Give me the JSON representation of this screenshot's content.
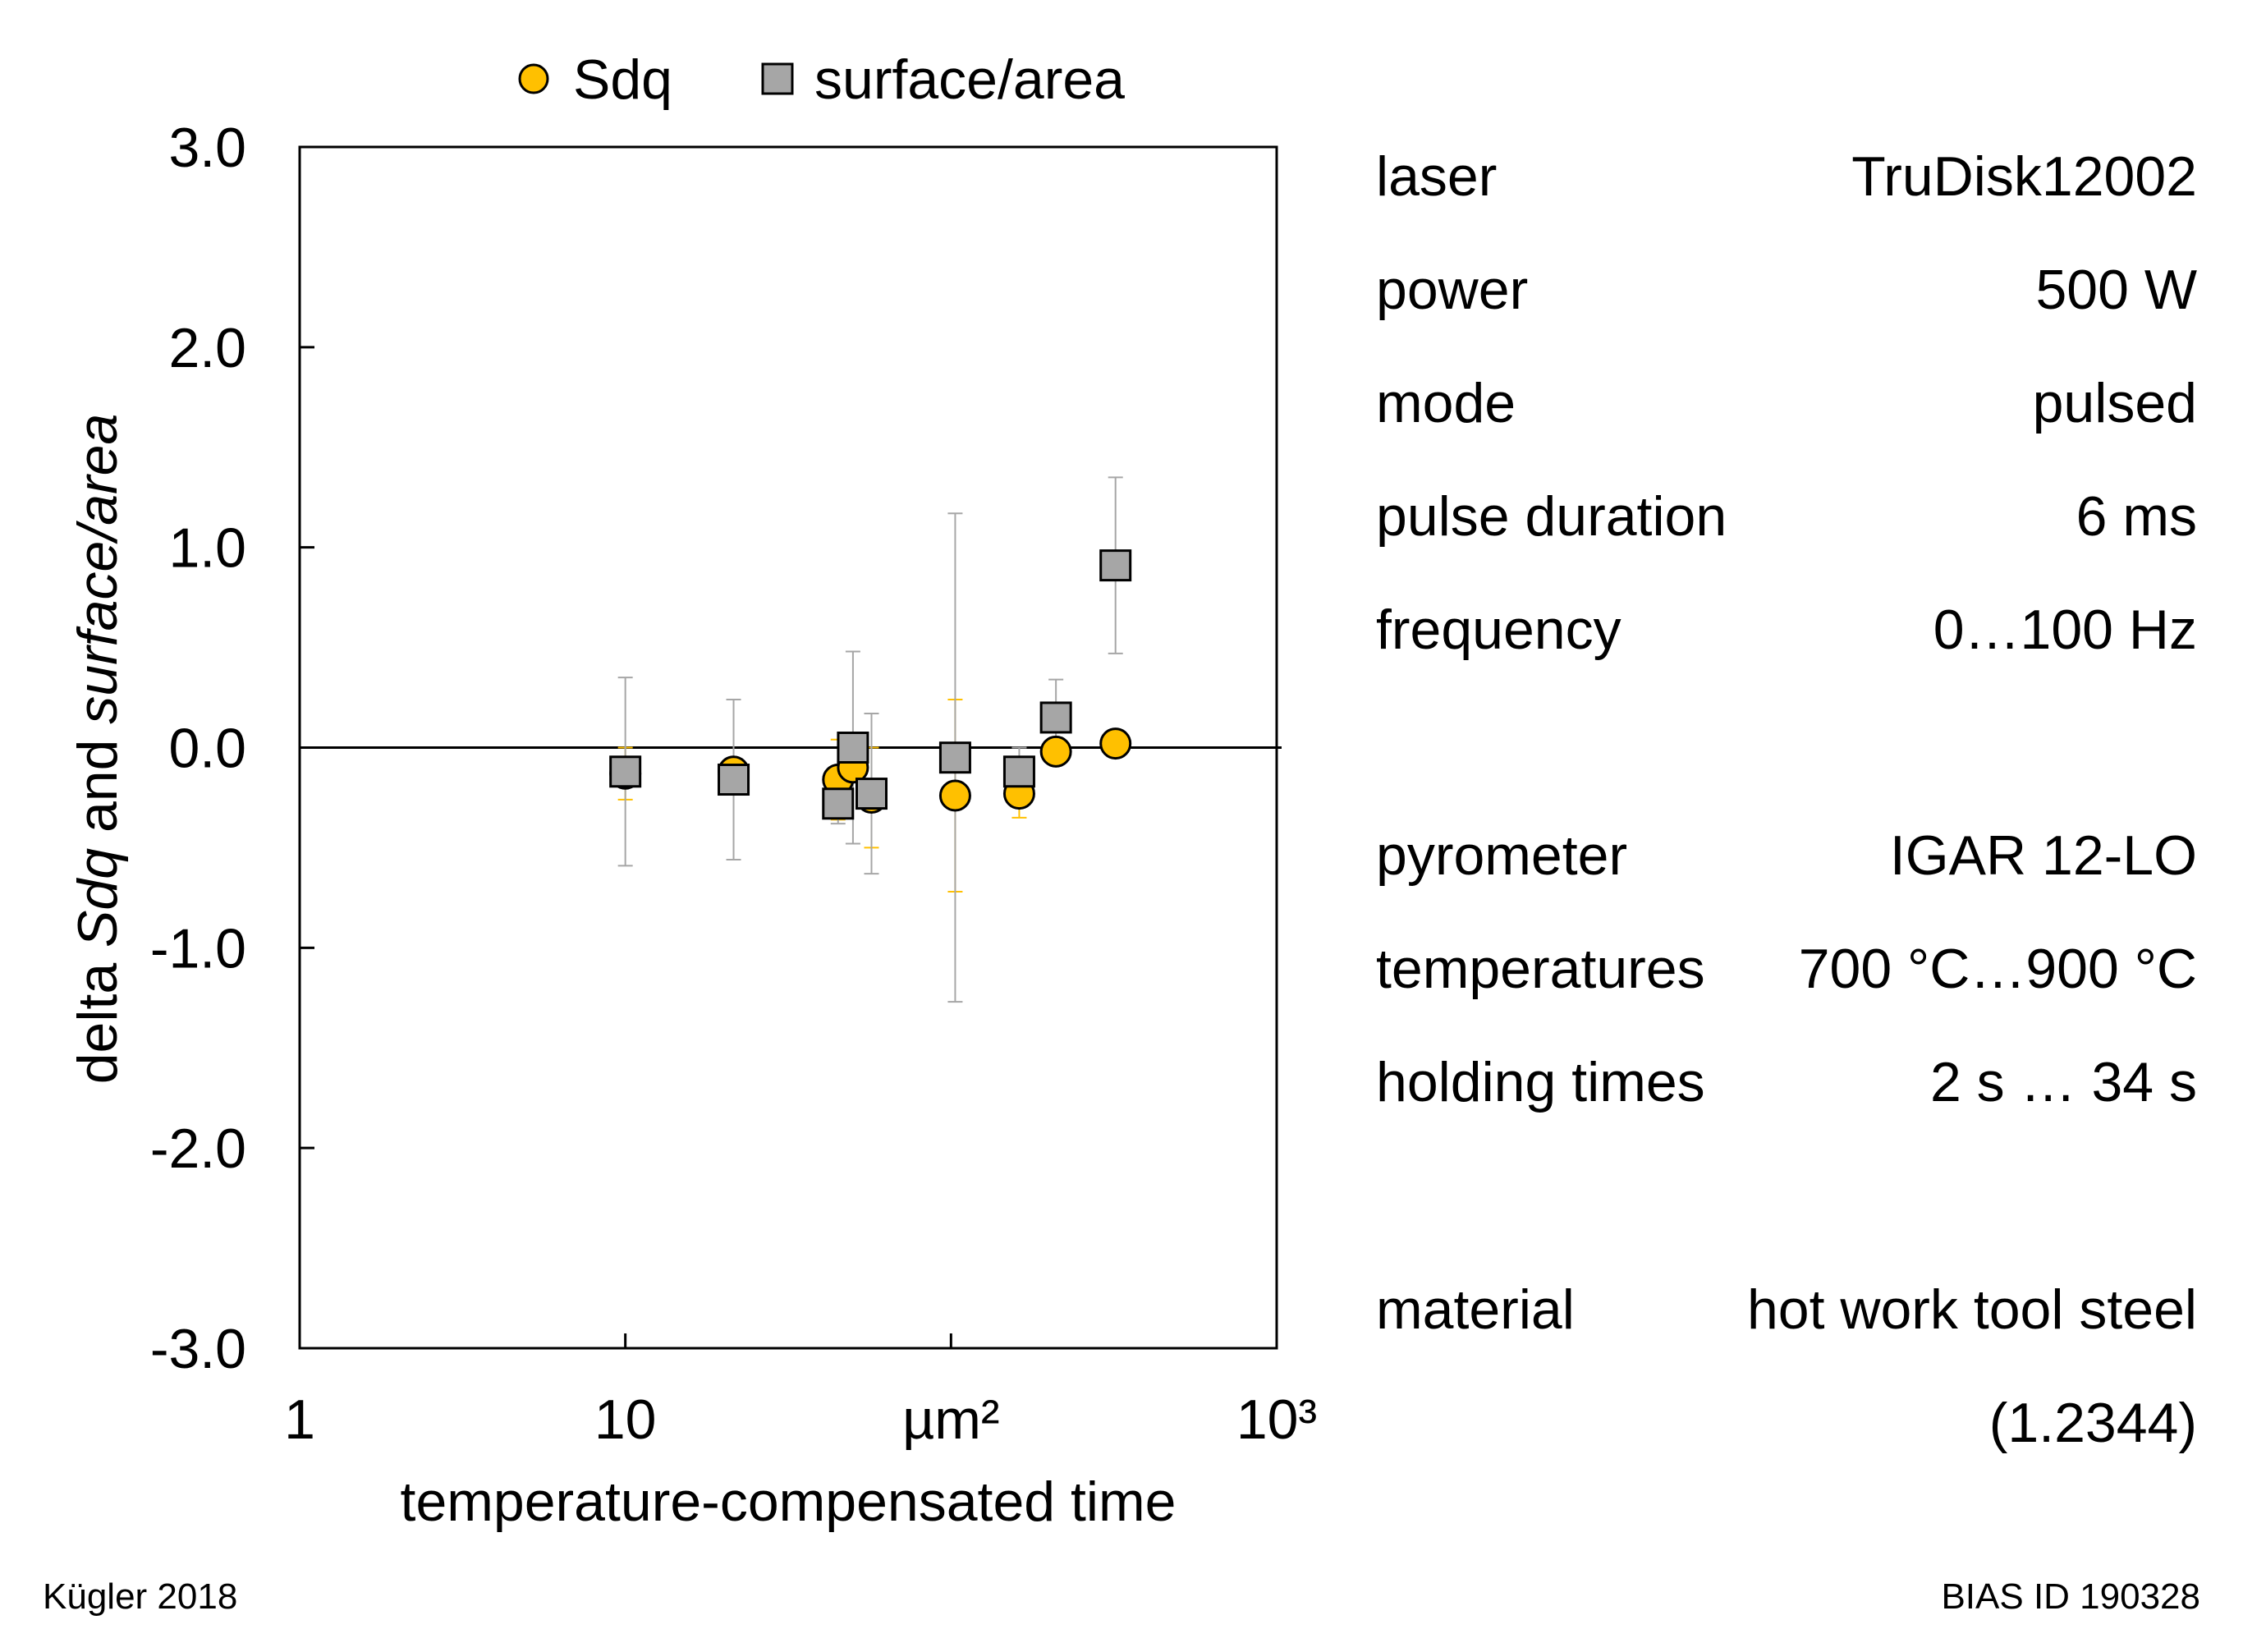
{
  "chart_data": {
    "type": "scatter",
    "xscale": "log",
    "xlim": [
      1,
      1000
    ],
    "ylim": [
      -3.0,
      3.0
    ],
    "xlabel": "temperature-compensated time",
    "ylabel": {
      "prefix": "delta ",
      "italic1": "Sdq",
      "middle": " and ",
      "italic2": "surface/area"
    },
    "xticks": [
      {
        "value": 1,
        "label": "1"
      },
      {
        "value": 10,
        "label": "10"
      },
      {
        "value": 100,
        "label": "µm²"
      },
      {
        "value": 1000,
        "label": "10³"
      }
    ],
    "yticks": [
      {
        "value": 3.0,
        "label": "3.0"
      },
      {
        "value": 2.0,
        "label": "2.0"
      },
      {
        "value": 1.0,
        "label": "1.0"
      },
      {
        "value": 0.0,
        "label": "0.0"
      },
      {
        "value": -1.0,
        "label": "-1.0"
      },
      {
        "value": -2.0,
        "label": "-2.0"
      },
      {
        "value": -3.0,
        "label": "-3.0"
      }
    ],
    "reference_line": 0.0,
    "legend_position": "top",
    "series": [
      {
        "name": "Sdq",
        "marker": "circle",
        "color": "#FFC000",
        "errorbar_color": "#FFC000",
        "points": [
          {
            "x": 10.0,
            "y": -0.13,
            "err": 0.13
          },
          {
            "x": 21.5,
            "y": -0.12,
            "err": 0.04
          },
          {
            "x": 45.0,
            "y": -0.16,
            "err": 0.2
          },
          {
            "x": 50.0,
            "y": -0.1,
            "err": 0.02
          },
          {
            "x": 57.0,
            "y": -0.25,
            "err": 0.25
          },
          {
            "x": 103.0,
            "y": -0.24,
            "err": 0.48
          },
          {
            "x": 162.0,
            "y": -0.23,
            "err": 0.12
          },
          {
            "x": 210.0,
            "y": -0.02,
            "err": 0.02
          },
          {
            "x": 320.0,
            "y": 0.02,
            "err": 0.02
          }
        ]
      },
      {
        "name": "surface/area",
        "marker": "square",
        "color": "#A6A6A6",
        "errorbar_color": "#A6A6A6",
        "points": [
          {
            "x": 10.0,
            "y": -0.12,
            "err": 0.47
          },
          {
            "x": 21.5,
            "y": -0.16,
            "err": 0.4
          },
          {
            "x": 45.0,
            "y": -0.28,
            "err": 0.1
          },
          {
            "x": 50.0,
            "y": 0.0,
            "err": 0.48
          },
          {
            "x": 57.0,
            "y": -0.23,
            "err": 0.4
          },
          {
            "x": 103.0,
            "y": -0.05,
            "err": 1.22
          },
          {
            "x": 162.0,
            "y": -0.12,
            "err": 0.12
          },
          {
            "x": 210.0,
            "y": 0.15,
            "err": 0.19
          },
          {
            "x": 320.0,
            "y": 0.91,
            "err": 0.44
          }
        ]
      }
    ]
  },
  "parameters": [
    {
      "key": "laser",
      "value": "TruDisk12002"
    },
    {
      "key": "power",
      "value": "500 W"
    },
    {
      "key": "mode",
      "value": "pulsed"
    },
    {
      "key": "pulse duration",
      "value": "6 ms"
    },
    {
      "key": "frequency",
      "value": "0…100 Hz"
    },
    {
      "key": "pyrometer",
      "value": "IGAR 12-LO"
    },
    {
      "key": "temperatures",
      "value": "700 °C…900 °C"
    },
    {
      "key": "holding times",
      "value": "2 s … 34 s"
    },
    {
      "key": "material",
      "value": "hot work tool steel"
    },
    {
      "key": "",
      "value": "(1.2344)"
    }
  ],
  "footer": {
    "author": "Kügler 2018",
    "id": "BIAS ID 190328"
  },
  "colors": {
    "sdq": "#FFC000",
    "surface": "#A6A6A6",
    "errorbar_sdq": "#FFC000",
    "errorbar_surface": "#A6A6A6"
  }
}
